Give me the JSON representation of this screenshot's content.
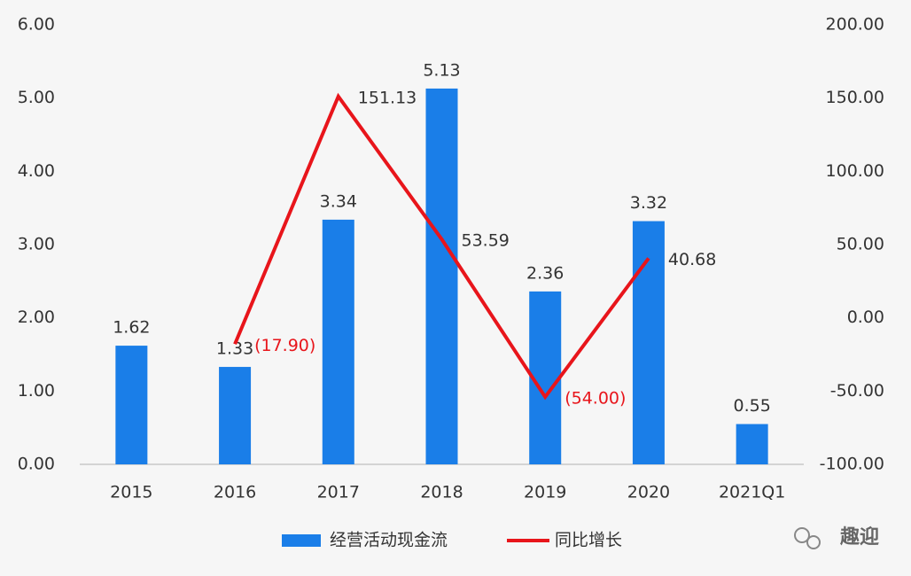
{
  "chart_data": {
    "type": "bar-line",
    "categories": [
      "2015",
      "2016",
      "2017",
      "2018",
      "2019",
      "2020",
      "2021Q1"
    ],
    "series": [
      {
        "name": "经营活动现金流",
        "type": "bar",
        "color": "#1a7ee8",
        "values": [
          1.62,
          1.33,
          3.34,
          5.13,
          2.36,
          3.32,
          0.55
        ]
      },
      {
        "name": "同比增长",
        "type": "line",
        "axis": "y2",
        "color": "#e8151b",
        "values": [
          null,
          -17.9,
          151.13,
          53.59,
          -54.0,
          40.68,
          null
        ],
        "value_labels": [
          null,
          "(17.90)",
          "151.13",
          "53.59",
          "(54.00)",
          "40.68",
          null
        ]
      }
    ],
    "ylim": [
      0,
      6
    ],
    "yticks": [
      {
        "value": 0,
        "label": "0.00"
      },
      {
        "value": 1,
        "label": "1.00"
      },
      {
        "value": 2,
        "label": "2.00"
      },
      {
        "value": 3,
        "label": "3.00"
      },
      {
        "value": 4,
        "label": "4.00"
      },
      {
        "value": 5,
        "label": "5.00"
      },
      {
        "value": 6,
        "label": "6.00"
      }
    ],
    "y2lim": [
      -100,
      200
    ],
    "y2ticks": [
      {
        "value": -100,
        "label": "-100.00"
      },
      {
        "value": -50,
        "label": "-50.00"
      },
      {
        "value": 0,
        "label": "0.00"
      },
      {
        "value": 50,
        "label": "50.00"
      },
      {
        "value": 100,
        "label": "100.00"
      },
      {
        "value": 150,
        "label": "150.00"
      },
      {
        "value": 200,
        "label": "200.00"
      }
    ],
    "grid": false,
    "legend": "bottom"
  },
  "watermark": "趣迎"
}
